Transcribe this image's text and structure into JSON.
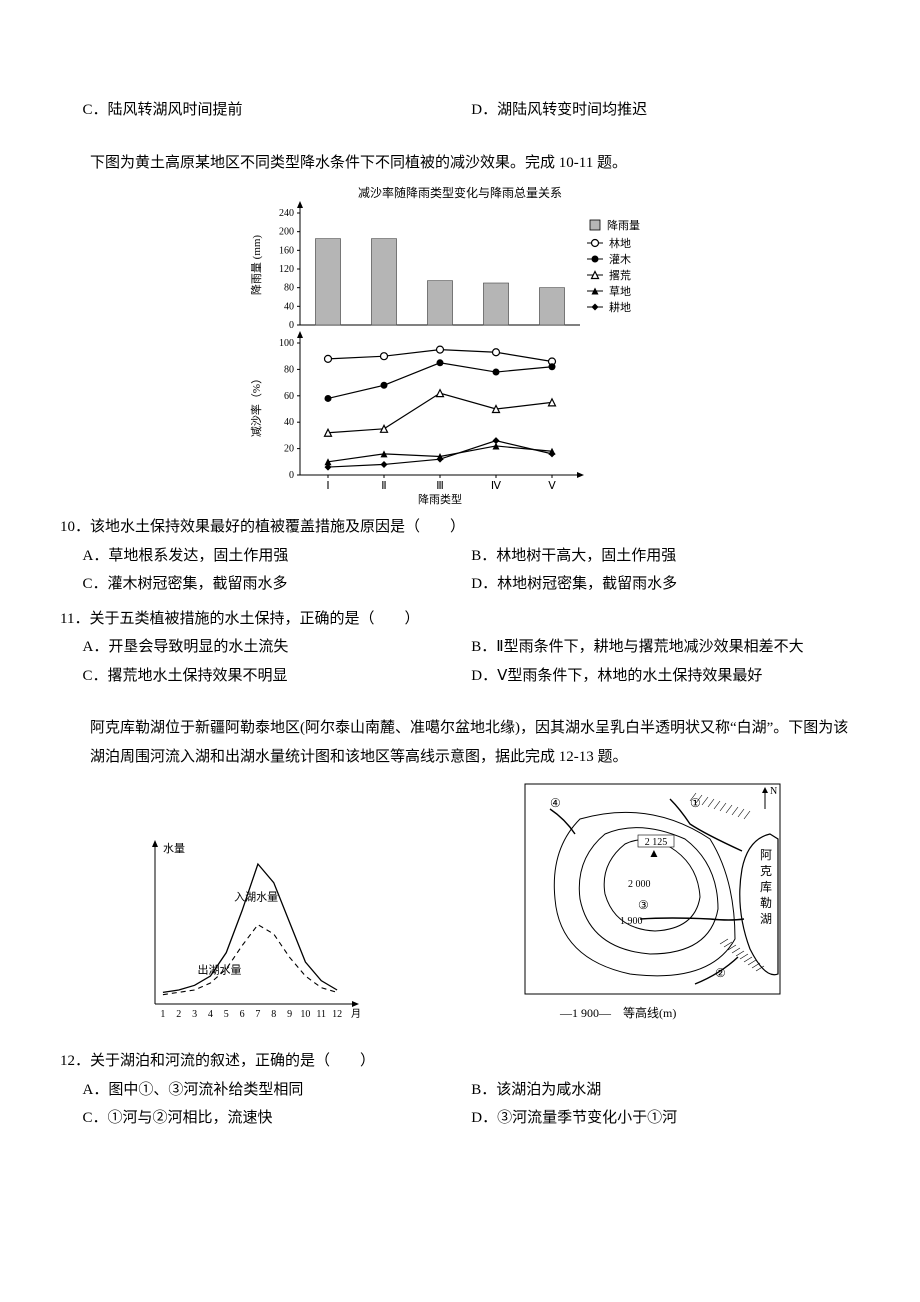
{
  "top_options": {
    "c": "C．陆风转湖风时间提前",
    "d": "D．湖陆风转变时间均推迟"
  },
  "passage1": {
    "intro": "下图为黄土高原某地区不同类型降水条件下不同植被的减沙效果。完成 10-11 题。",
    "chart": {
      "title": "减沙率随降雨类型变化与降雨总量关系",
      "y1_label": "降雨量 (mm)",
      "y2_label": "减沙率（%）",
      "x_label": "降雨类型",
      "x_cats": [
        "Ⅰ",
        "Ⅱ",
        "Ⅲ",
        "Ⅳ",
        "Ⅴ"
      ],
      "y1_ticks": [
        0,
        40,
        80,
        120,
        160,
        200,
        240
      ],
      "y2_ticks": [
        0,
        20,
        40,
        60,
        80,
        100
      ],
      "bar_vals": [
        185,
        185,
        95,
        90,
        80
      ],
      "series": {
        "lindi": {
          "label": "林地",
          "marker": "circle-open",
          "vals": [
            88,
            90,
            95,
            93,
            86
          ]
        },
        "guanmu": {
          "label": "灌木",
          "marker": "circle-filled",
          "vals": [
            58,
            68,
            85,
            78,
            82
          ]
        },
        "gehuang": {
          "label": "撂荒",
          "marker": "triangle-open",
          "vals": [
            32,
            35,
            62,
            50,
            55
          ]
        },
        "caodi": {
          "label": "草地",
          "marker": "triangle-filled",
          "vals": [
            10,
            16,
            14,
            22,
            18
          ]
        },
        "gengdi": {
          "label": "耕地",
          "marker": "diamond-filled",
          "vals": [
            6,
            8,
            12,
            26,
            16
          ]
        }
      },
      "legend_bar": "降雨量",
      "bar_color": "#b5b5b5",
      "line_color": "#000000",
      "axis_color": "#000000"
    }
  },
  "q10": {
    "stem": "10．该地水土保持效果最好的植被覆盖措施及原因是（　　）",
    "a": "A．草地根系发达，固土作用强",
    "b": "B．林地树干高大，固土作用强",
    "c": "C．灌木树冠密集，截留雨水多",
    "d": "D．林地树冠密集，截留雨水多"
  },
  "q11": {
    "stem": "11．关于五类植被措施的水土保持，正确的是（　　）",
    "a": "A．开垦会导致明显的水土流失",
    "b": "B．Ⅱ型雨条件下，耕地与撂荒地减沙效果相差不大",
    "c": "C．撂荒地水土保持效果不明显",
    "d": "D．Ⅴ型雨条件下，林地的水土保持效果最好"
  },
  "passage2": {
    "intro": "阿克库勒湖位于新疆阿勒泰地区(阿尔泰山南麓、准噶尔盆地北缘)，因其湖水呈乳白半透明状又称“白湖”。下图为该湖泊周围河流入湖和出湖水量统计图和该地区等高线示意图，据此完成 12-13 题。",
    "hydro": {
      "y_label": "水量",
      "in_label": "入湖水量",
      "out_label": "出湖水量",
      "x_ticks": [
        "1",
        "2",
        "3",
        "4",
        "5",
        "6",
        "7",
        "8",
        "9",
        "10",
        "11",
        "12"
      ],
      "x_suffix": "月",
      "in_vals": [
        5,
        6,
        8,
        12,
        22,
        40,
        60,
        52,
        35,
        18,
        10,
        6
      ],
      "out_vals": [
        4,
        5,
        6,
        9,
        15,
        25,
        34,
        30,
        20,
        12,
        7,
        5
      ]
    },
    "map": {
      "contours": [
        "2 125",
        "2 000",
        "1 900"
      ],
      "peak_symbol": "▲",
      "lake_label": "阿克库勒湖",
      "north": "N",
      "nums": [
        "①",
        "②",
        "③",
        "④"
      ],
      "legend": "—1 900—　等高线(m)"
    }
  },
  "q12": {
    "stem": "12．关于湖泊和河流的叙述，正确的是（　　）",
    "a": "A．图中①、③河流补给类型相同",
    "b": "B．该湖泊为咸水湖",
    "c": "C．①河与②河相比，流速快",
    "d": "D．③河流量季节变化小于①河"
  }
}
